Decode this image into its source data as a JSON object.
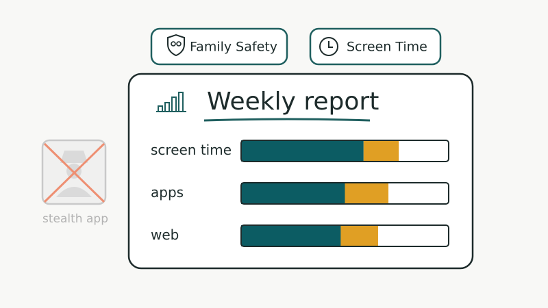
{
  "buttons": [
    {
      "label": "Family Safety"
    },
    {
      "label": "Screen Time"
    }
  ],
  "report": {
    "title": "Weekly report",
    "segment_colors": [
      "#0c5c63",
      "#e09f24",
      "#ffffff"
    ],
    "rows": [
      {
        "label": "screen time",
        "segments": [
          59,
          17,
          24
        ]
      },
      {
        "label": "apps",
        "segments": [
          50,
          21,
          29
        ]
      },
      {
        "label": "web",
        "segments": [
          48,
          18,
          34
        ]
      }
    ]
  },
  "stealth_app": {
    "label": "stealth app"
  }
}
